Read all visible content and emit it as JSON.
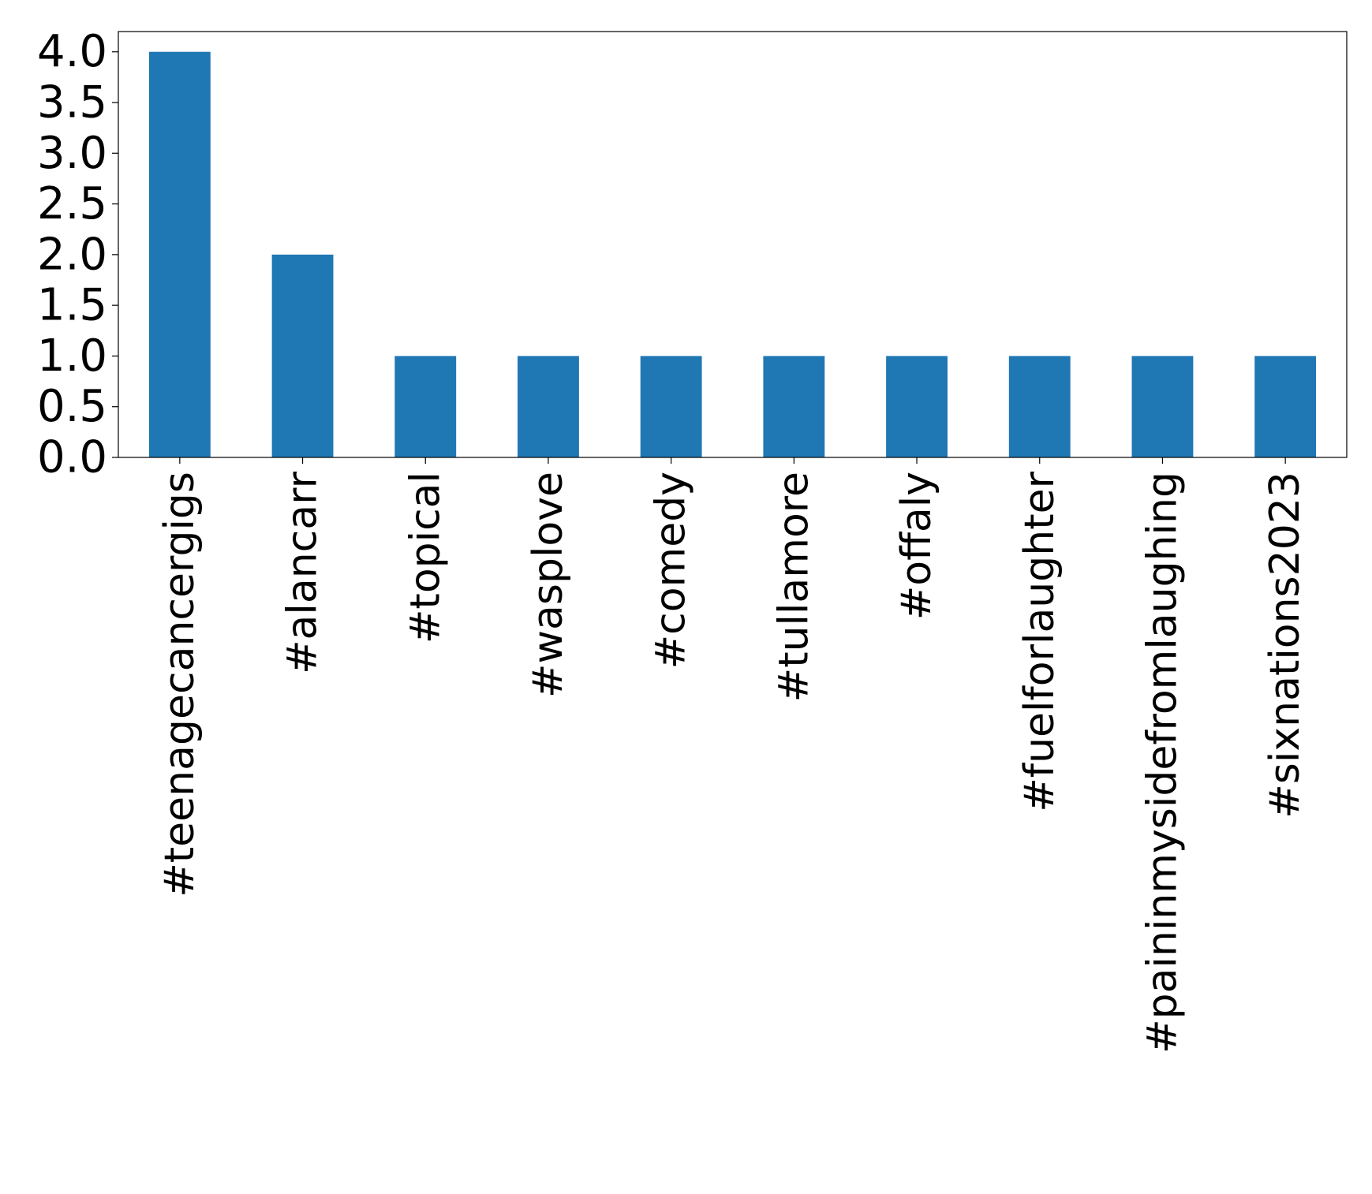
{
  "chart_data": {
    "type": "bar",
    "title": "",
    "xlabel": "",
    "ylabel": "",
    "categories": [
      "#teenagecancergigs",
      "#alancarr",
      "#topical",
      "#wasplove",
      "#comedy",
      "#tullamore",
      "#offaly",
      "#fuelforlaughter",
      "#paininmysidefromlaughing",
      "#sixnations2023"
    ],
    "values": [
      4,
      2,
      1,
      1,
      1,
      1,
      1,
      1,
      1,
      1
    ],
    "ylim": [
      0,
      4.2
    ],
    "yticks": [
      0.0,
      0.5,
      1.0,
      1.5,
      2.0,
      2.5,
      3.0,
      3.5,
      4.0
    ],
    "ytick_labels": [
      "0.0",
      "0.5",
      "1.0",
      "1.5",
      "2.0",
      "2.5",
      "3.0",
      "3.5",
      "4.0"
    ],
    "grid": false,
    "legend": "none",
    "bar_color": "#1f77b4",
    "x_tick_label_rotation": "vertical"
  }
}
